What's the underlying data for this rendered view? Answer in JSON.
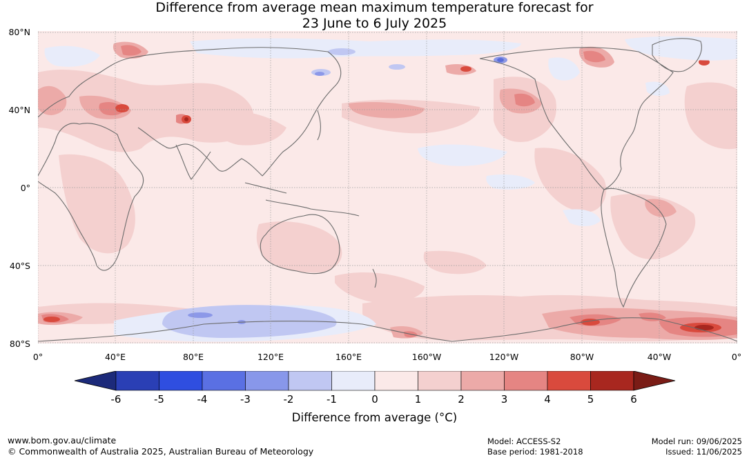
{
  "title_line1": "Difference from average mean maximum temperature forecast for",
  "title_line2": "23 June to 6 July 2025",
  "map": {
    "lat_labels": [
      "80°N",
      "40°N",
      "0°",
      "40°S",
      "80°S"
    ],
    "lon_labels": [
      "0°",
      "40°E",
      "80°E",
      "120°E",
      "160°E",
      "160°W",
      "120°W",
      "80°W",
      "40°W",
      "0°"
    ],
    "colors": {
      "ocean_base": "#fbe9e8",
      "warm_1": "#f4d0cf",
      "warm_2": "#ecaaa8",
      "warm_3": "#e58583",
      "warm_4": "#d94a3d",
      "warm_5": "#a8271f",
      "cool_1": "#e8ecfa",
      "cool_2": "#c0c7f2",
      "cool_3": "#8c98e8",
      "cool_4": "#5a6cd9",
      "coast": "#6b6b6b"
    }
  },
  "colorbar": {
    "ticks": [
      "-6",
      "-5",
      "-4",
      "-3",
      "-2",
      "-1",
      "0",
      "1",
      "2",
      "3",
      "4",
      "5",
      "6"
    ],
    "colors": [
      "#1c2a7a",
      "#2a3fb5",
      "#2f4ee0",
      "#5a70e3",
      "#8897ea",
      "#c0c7f2",
      "#e8ecfa",
      "#fbe9e8",
      "#f4d0cf",
      "#ecaaa8",
      "#e58583",
      "#d94a3d",
      "#a8271f",
      "#7a1c16"
    ],
    "title": "Difference from average (°C)"
  },
  "footer": {
    "website": "www.bom.gov.au/climate",
    "copyright": "© Commonwealth of Australia 2025, Australian Bureau of Meteorology",
    "model": "Model: ACCESS-S2",
    "base_period": "Base period: 1981-2018",
    "model_run": "Model run: 09/06/2025",
    "issued": "Issued: 11/06/2025"
  }
}
